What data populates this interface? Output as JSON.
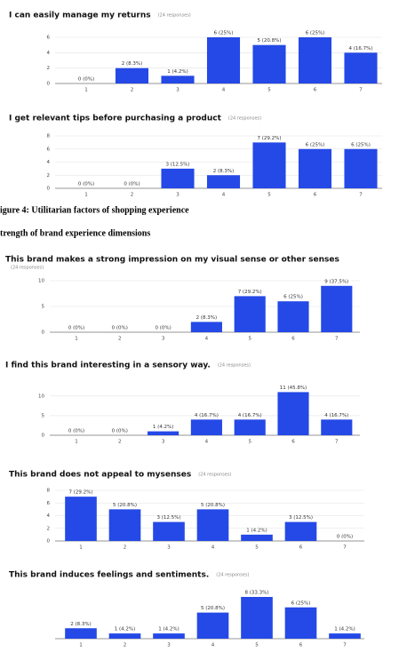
{
  "captions": [
    "igure 4: Utilitarian factors of shopping experience",
    "trength of brand experience dimensions"
  ],
  "chart_data": [
    {
      "type": "bar",
      "title": "I can easily manage my returns",
      "subtitle": "(24 responses)",
      "color": "#2449e6",
      "categories": [
        "1",
        "2",
        "3",
        "4",
        "5",
        "6",
        "7"
      ],
      "values": [
        0,
        2,
        1,
        6,
        5,
        6,
        4
      ],
      "value_labels": [
        "0 (0%)",
        "2 (8.3%)",
        "1 (4.2%)",
        "6 (25%)",
        "5 (20.8%)",
        "6 (25%)",
        "4 (16.7%)"
      ],
      "ylim": [
        0,
        6
      ],
      "yticks": [
        0,
        2,
        4,
        6
      ],
      "grid": true
    },
    {
      "type": "bar",
      "title": "I get relevant tips before purchasing a product",
      "subtitle": "(24 responses)",
      "color": "#2449e6",
      "categories": [
        "1",
        "2",
        "3",
        "4",
        "5",
        "6",
        "7"
      ],
      "values": [
        0,
        0,
        3,
        2,
        7,
        6,
        6
      ],
      "value_labels": [
        "0 (0%)",
        "0 (0%)",
        "3 (12.5%)",
        "2 (8.3%)",
        "7 (29.2%)",
        "6 (25%)",
        "6 (25%)"
      ],
      "ylim": [
        0,
        8
      ],
      "yticks": [
        0,
        2,
        4,
        6,
        8
      ],
      "grid": true
    },
    {
      "type": "bar",
      "title": "This brand makes a strong impression on my visual sense or other senses",
      "subtitle": "(24 responses)",
      "color": "#2449e6",
      "categories": [
        "1",
        "2",
        "3",
        "4",
        "5",
        "6",
        "7"
      ],
      "values": [
        0,
        0,
        0,
        2,
        7,
        6,
        9
      ],
      "value_labels": [
        "0 (0%)",
        "0 (0%)",
        "0 (0%)",
        "2 (8.3%)",
        "7 (29.2%)",
        "6 (25%)",
        "9 (37.5%)"
      ],
      "ylim": [
        0,
        10
      ],
      "yticks": [
        0,
        5,
        10
      ],
      "grid": true
    },
    {
      "type": "bar",
      "title": "I find this brand interesting in a sensory way.",
      "subtitle": "(24 responses)",
      "color": "#2449e6",
      "categories": [
        "1",
        "2",
        "3",
        "4",
        "5",
        "6",
        "7"
      ],
      "values": [
        0,
        0,
        1,
        4,
        4,
        11,
        4
      ],
      "value_labels": [
        "0 (0%)",
        "0 (0%)",
        "1 (4.2%)",
        "4 (16.7%)",
        "4 (16.7%)",
        "11 (45.8%)",
        "4 (16.7%)"
      ],
      "ylim": [
        0,
        12
      ],
      "yticks": [
        0,
        5,
        10
      ],
      "grid": true
    },
    {
      "type": "bar",
      "title": "This brand does not appeal to mysenses",
      "subtitle": "(24 responses)",
      "color": "#2449e6",
      "categories": [
        "1",
        "2",
        "3",
        "4",
        "5",
        "6",
        "7"
      ],
      "values": [
        7,
        5,
        3,
        5,
        1,
        3,
        0
      ],
      "value_labels": [
        "7 (29.2%)",
        "5 (20.8%)",
        "3 (12.5%)",
        "5 (20.8%)",
        "1 (4.2%)",
        "3 (12.5%)",
        "0 (0%)"
      ],
      "ylim": [
        0,
        8
      ],
      "yticks": [
        0,
        2,
        4,
        6,
        8
      ],
      "grid": true
    },
    {
      "type": "bar",
      "title": "This brand induces feelings and sentiments.",
      "subtitle": "(24 responses)",
      "color": "#2449e6",
      "categories": [
        "1",
        "2",
        "3",
        "4",
        "5",
        "6",
        "7"
      ],
      "values": [
        2,
        1,
        1,
        5,
        8,
        6,
        1
      ],
      "value_labels": [
        "2 (8.3%)",
        "1 (4.2%)",
        "1 (4.2%)",
        "5 (20.8%)",
        "8 (33.3%)",
        "6 (25%)",
        "1 (4.2%)"
      ],
      "ylim": [
        0,
        8
      ],
      "grid": true
    }
  ]
}
